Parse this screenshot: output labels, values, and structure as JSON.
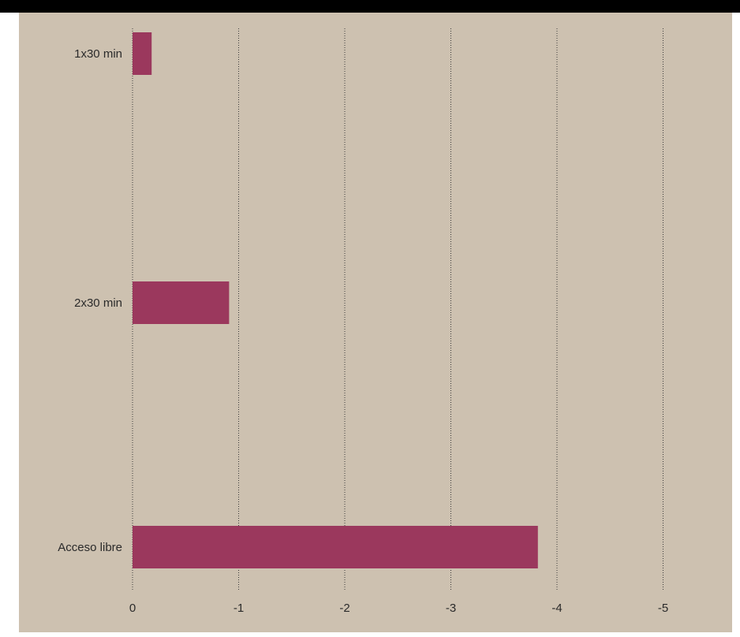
{
  "colors": {
    "background": "#cdc1b0",
    "bar": "#9b385d",
    "top_band": "#000000",
    "grid": "#3a3a3a"
  },
  "chart_data": {
    "type": "bar",
    "orientation": "horizontal",
    "categories": [
      "1x30 min",
      "2x30 min",
      "Acceso libre"
    ],
    "values": [
      -0.18,
      -0.91,
      -3.82
    ],
    "xlim": [
      0,
      -5
    ],
    "xticks": [
      0,
      -1,
      -2,
      -3,
      -4,
      -5
    ],
    "xtick_labels": [
      "0",
      "-1",
      "-2",
      "-3",
      "-4",
      "-5"
    ],
    "title": "",
    "xlabel": "",
    "ylabel": "",
    "grid": "vertical-dotted",
    "legend": "none"
  }
}
